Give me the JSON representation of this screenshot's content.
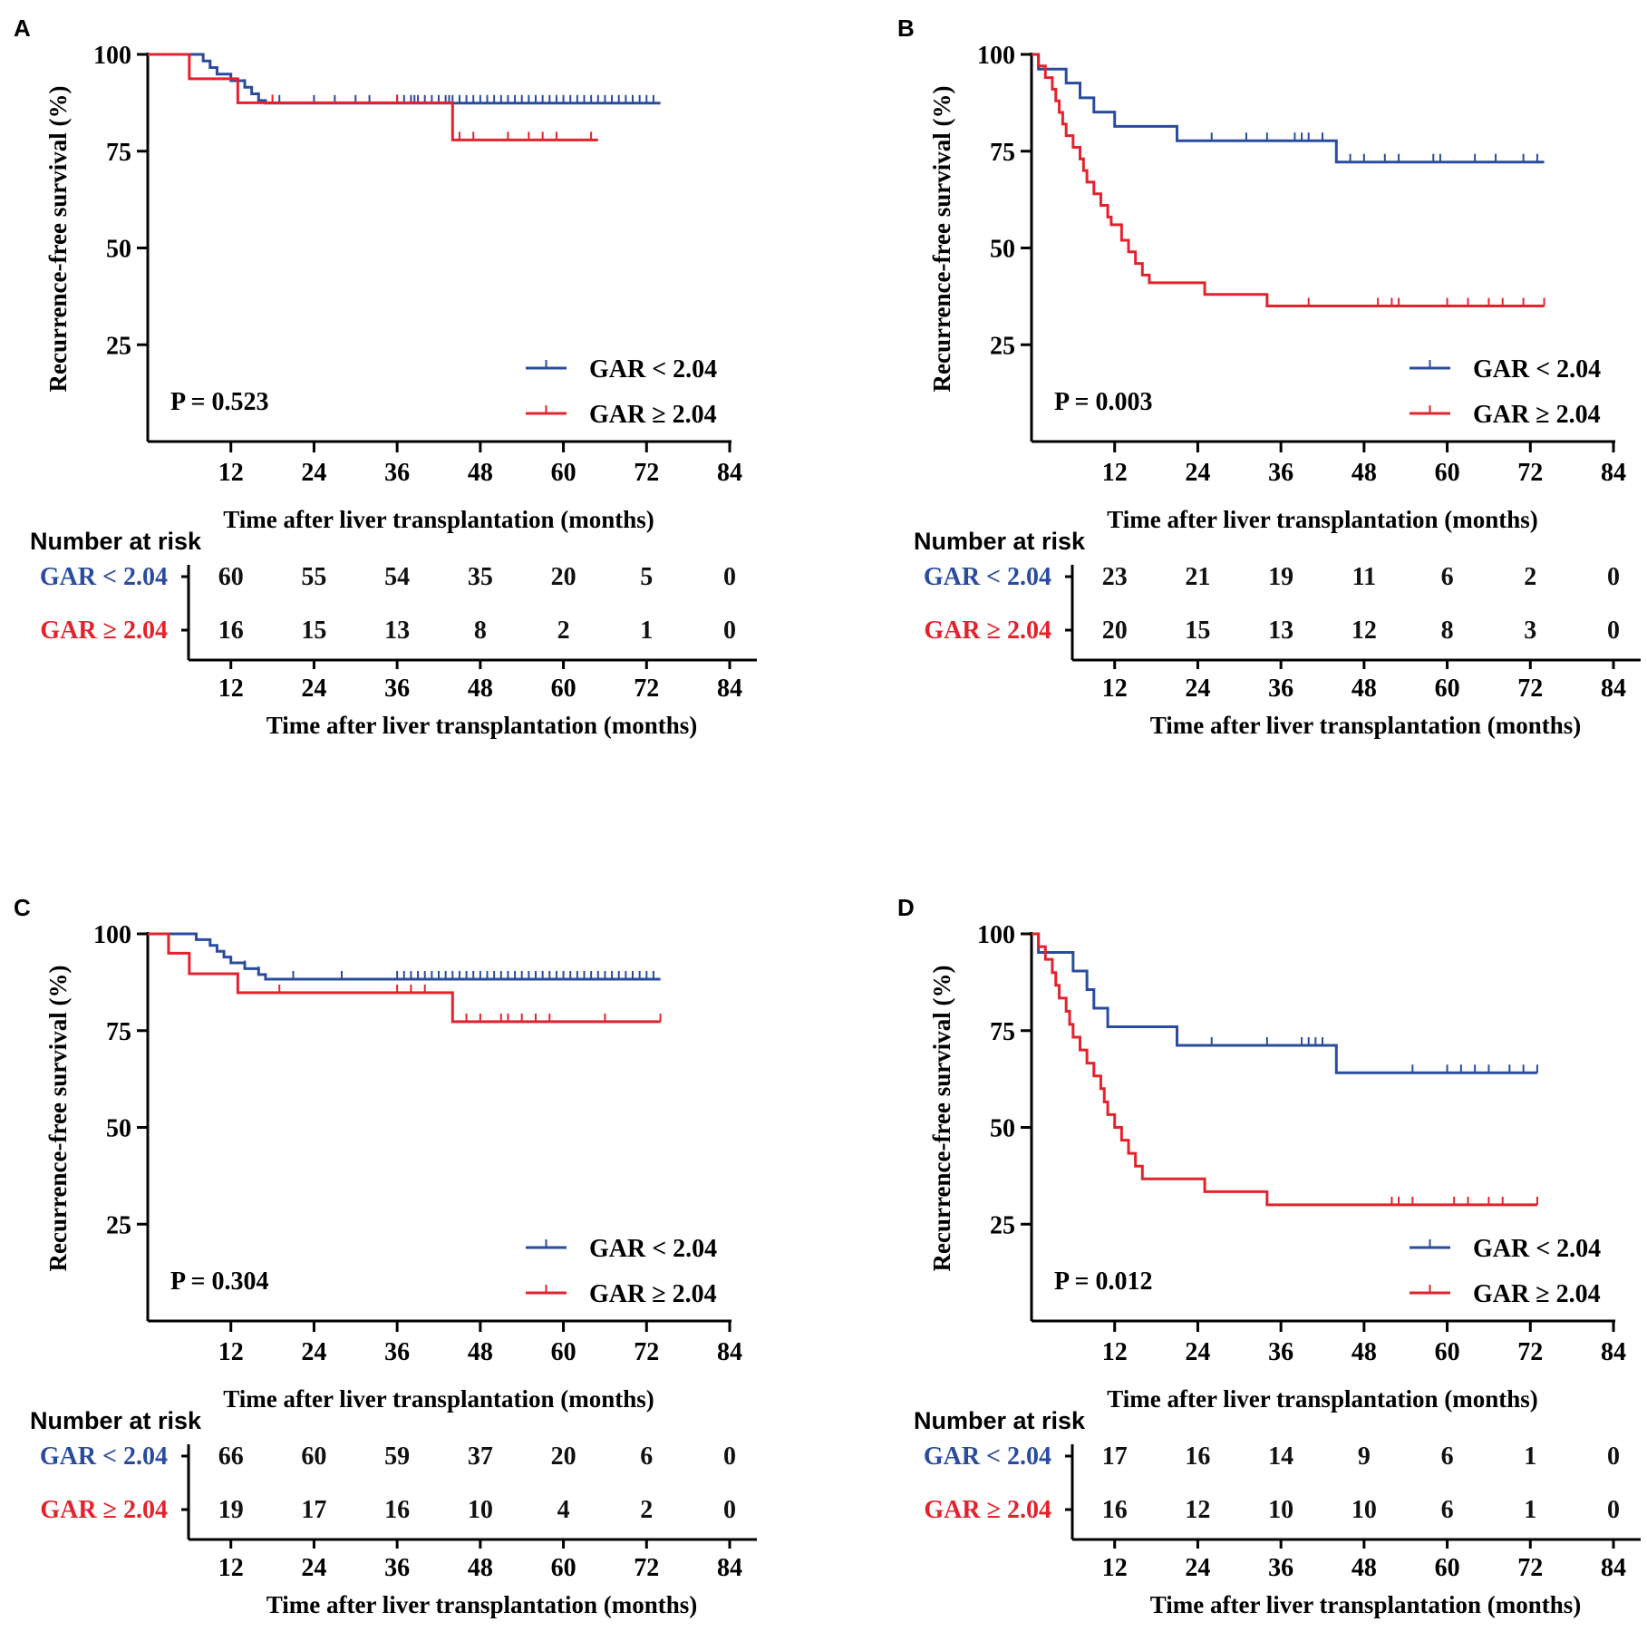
{
  "colors": {
    "low": "#2a4c9e",
    "high": "#e3232c",
    "axis": "#000000"
  },
  "chart_data": [
    {
      "type": "line",
      "panel": "A",
      "ylabel": "Recurrence-free survival (%)",
      "xlabel": "Time after liver transplantation (months)",
      "yticks": [
        100,
        75,
        50,
        25
      ],
      "xticks": [
        12,
        24,
        36,
        48,
        60,
        72,
        84
      ],
      "xlim": [
        0,
        84
      ],
      "ylim": [
        0,
        100
      ],
      "pvalue": "P = 0.523",
      "series": [
        {
          "name": "GAR < 2.04",
          "color": "#2a4c9e",
          "steps": [
            [
              0,
              100
            ],
            [
              8,
              98.3
            ],
            [
              9,
              96.6
            ],
            [
              10,
              94.9
            ],
            [
              12,
              93.2
            ],
            [
              14,
              91.5
            ],
            [
              15,
              89.8
            ],
            [
              16,
              88.1
            ],
            [
              17,
              87.4
            ],
            [
              74,
              87.4
            ]
          ],
          "censors": [
            14,
            16,
            19,
            24,
            27,
            30,
            32,
            36,
            37,
            38,
            38.5,
            39,
            40,
            41,
            42,
            43,
            43.5,
            44,
            45,
            46,
            47,
            48,
            49,
            50,
            51,
            52,
            53,
            54,
            55,
            56,
            57,
            58,
            59,
            60,
            61,
            62,
            63,
            64,
            65,
            66,
            67,
            68,
            69,
            70,
            71,
            72,
            73
          ]
        },
        {
          "name": "GAR ≥ 2.04",
          "color": "#e3232c",
          "steps": [
            [
              0,
              100
            ],
            [
              6,
              93.7
            ],
            [
              13,
              87.5
            ],
            [
              44,
              87.5
            ],
            [
              44,
              77.9
            ],
            [
              65,
              77.9
            ]
          ],
          "censors": [
            18,
            36,
            45,
            47,
            52,
            55,
            57,
            59,
            64
          ]
        }
      ],
      "risk_table": {
        "title": "Number at risk",
        "xlabel": "Time after liver transplantation (months)",
        "xticks": [
          12,
          24,
          36,
          48,
          60,
          72,
          84
        ],
        "rows": [
          {
            "group": "GAR < 2.04",
            "counts": [
              60,
              55,
              54,
              35,
              20,
              5,
              0
            ]
          },
          {
            "group": "GAR ≥ 2.04",
            "counts": [
              16,
              15,
              13,
              8,
              2,
              1,
              0
            ]
          }
        ]
      }
    },
    {
      "type": "line",
      "panel": "B",
      "ylabel": "Recurrence-free survival (%)",
      "xlabel": "Time after liver transplantation (months)",
      "yticks": [
        100,
        75,
        50,
        25
      ],
      "xticks": [
        12,
        24,
        36,
        48,
        60,
        72,
        84
      ],
      "xlim": [
        0,
        84
      ],
      "ylim": [
        0,
        100
      ],
      "pvalue": "P = 0.003",
      "series": [
        {
          "name": "GAR < 2.04",
          "color": "#2a4c9e",
          "steps": [
            [
              0,
              100
            ],
            [
              1,
              96.2
            ],
            [
              5,
              92.6
            ],
            [
              7,
              88.8
            ],
            [
              9,
              85.1
            ],
            [
              12,
              81.4
            ],
            [
              21,
              81.4
            ],
            [
              21,
              77.7
            ],
            [
              44,
              77.7
            ],
            [
              44,
              72.2
            ],
            [
              74,
              72.2
            ]
          ],
          "censors": [
            26,
            31,
            34,
            38,
            39,
            40,
            42,
            46,
            48,
            51,
            53,
            58,
            59,
            64,
            67,
            71,
            73
          ]
        },
        {
          "name": "GAR ≥ 2.04",
          "color": "#e3232c",
          "steps": [
            [
              0,
              100
            ],
            [
              1,
              97
            ],
            [
              2,
              94
            ],
            [
              3,
              91
            ],
            [
              3.5,
              88
            ],
            [
              4,
              85
            ],
            [
              4.5,
              82
            ],
            [
              5,
              79
            ],
            [
              6,
              76
            ],
            [
              7,
              73
            ],
            [
              7.5,
              70
            ],
            [
              8,
              67
            ],
            [
              9,
              64
            ],
            [
              10,
              61
            ],
            [
              11,
              58
            ],
            [
              11.5,
              56
            ],
            [
              13,
              52
            ],
            [
              14,
              49
            ],
            [
              15,
              46
            ],
            [
              16,
              43
            ],
            [
              17,
              41
            ],
            [
              25,
              41
            ],
            [
              25,
              38
            ],
            [
              34,
              38
            ],
            [
              34,
              35
            ],
            [
              74,
              35
            ]
          ],
          "censors": [
            40,
            50,
            52,
            53,
            60,
            63,
            66,
            68,
            71,
            74
          ]
        }
      ],
      "risk_table": {
        "title": "Number at risk",
        "xlabel": "Time after liver transplantation (months)",
        "xticks": [
          12,
          24,
          36,
          48,
          60,
          72,
          84
        ],
        "rows": [
          {
            "group": "GAR < 2.04",
            "counts": [
              23,
              21,
              19,
              11,
              6,
              2,
              0
            ]
          },
          {
            "group": "GAR ≥ 2.04",
            "counts": [
              20,
              15,
              13,
              12,
              8,
              3,
              0
            ]
          }
        ]
      }
    },
    {
      "type": "line",
      "panel": "C",
      "ylabel": "Recurrence-free survival (%)",
      "xlabel": "Time after liver transplantation (months)",
      "yticks": [
        100,
        75,
        50,
        25
      ],
      "xticks": [
        12,
        24,
        36,
        48,
        60,
        72,
        84
      ],
      "xlim": [
        0,
        84
      ],
      "ylim": [
        0,
        100
      ],
      "pvalue": "P = 0.304",
      "series": [
        {
          "name": "GAR < 2.04",
          "color": "#2a4c9e",
          "steps": [
            [
              0,
              100
            ],
            [
              7,
              98.5
            ],
            [
              9,
              97
            ],
            [
              10,
              95.5
            ],
            [
              11,
              94
            ],
            [
              12,
              92.5
            ],
            [
              14,
              91
            ],
            [
              16,
              89.5
            ],
            [
              17,
              88.3
            ],
            [
              74,
              88.3
            ]
          ],
          "censors": [
            14,
            16,
            21,
            28,
            36,
            37,
            38,
            39,
            40,
            41,
            42,
            43,
            44,
            45,
            46,
            47,
            48,
            49,
            50,
            51,
            52,
            53,
            54,
            55,
            56,
            57,
            58,
            59,
            60,
            61,
            62,
            63,
            64,
            65,
            66,
            67,
            68,
            69,
            70,
            71,
            72,
            73
          ]
        },
        {
          "name": "GAR ≥ 2.04",
          "color": "#e3232c",
          "steps": [
            [
              0,
              100
            ],
            [
              3,
              95
            ],
            [
              6,
              89.7
            ],
            [
              13,
              84.8
            ],
            [
              44,
              84.8
            ],
            [
              44,
              77.3
            ],
            [
              74,
              77.3
            ]
          ],
          "censors": [
            19,
            36,
            38,
            40,
            44,
            46,
            48,
            51,
            52,
            54,
            56,
            58,
            66,
            74
          ]
        }
      ],
      "risk_table": {
        "title": "Number at risk",
        "xlabel": "Time after liver transplantation (months)",
        "xticks": [
          12,
          24,
          36,
          48,
          60,
          72,
          84
        ],
        "rows": [
          {
            "group": "GAR < 2.04",
            "counts": [
              66,
              60,
              59,
              37,
              20,
              6,
              0
            ]
          },
          {
            "group": "GAR ≥ 2.04",
            "counts": [
              19,
              17,
              16,
              10,
              4,
              2,
              0
            ]
          }
        ]
      }
    },
    {
      "type": "line",
      "panel": "D",
      "ylabel": "Recurrence-free survival (%)",
      "xlabel": "Time after liver transplantation (months)",
      "yticks": [
        100,
        75,
        50,
        25
      ],
      "xticks": [
        12,
        24,
        36,
        48,
        60,
        72,
        84
      ],
      "xlim": [
        0,
        84
      ],
      "ylim": [
        0,
        100
      ],
      "pvalue": "P = 0.012",
      "series": [
        {
          "name": "GAR < 2.04",
          "color": "#2a4c9e",
          "steps": [
            [
              0,
              100
            ],
            [
              1,
              95.2
            ],
            [
              6,
              90.4
            ],
            [
              8,
              85.6
            ],
            [
              9,
              80.8
            ],
            [
              11,
              76
            ],
            [
              21,
              76
            ],
            [
              21,
              71.2
            ],
            [
              44,
              71.2
            ],
            [
              44,
              64.1
            ],
            [
              73,
              64.1
            ]
          ],
          "censors": [
            26,
            34,
            39,
            40,
            41,
            42,
            55,
            60,
            62,
            64,
            66,
            69,
            71,
            73
          ]
        },
        {
          "name": "GAR ≥ 2.04",
          "color": "#e3232c",
          "steps": [
            [
              0,
              100
            ],
            [
              1,
              96.7
            ],
            [
              2,
              93.4
            ],
            [
              3,
              90
            ],
            [
              3.5,
              86.7
            ],
            [
              4,
              83.4
            ],
            [
              5,
              80
            ],
            [
              5.5,
              76.6
            ],
            [
              6,
              73.3
            ],
            [
              7,
              70
            ],
            [
              8,
              66.6
            ],
            [
              9,
              63.3
            ],
            [
              10,
              60
            ],
            [
              10.5,
              56.6
            ],
            [
              11,
              53.3
            ],
            [
              12,
              50
            ],
            [
              13,
              46.7
            ],
            [
              14,
              43.3
            ],
            [
              15,
              40
            ],
            [
              16,
              36.7
            ],
            [
              25,
              36.7
            ],
            [
              25,
              33.4
            ],
            [
              34,
              33.4
            ],
            [
              34,
              30
            ],
            [
              73,
              30
            ]
          ],
          "censors": [
            52,
            53,
            55,
            61,
            63,
            66,
            68,
            73
          ]
        }
      ],
      "risk_table": {
        "title": "Number at risk",
        "xlabel": "Time after liver transplantation (months)",
        "xticks": [
          12,
          24,
          36,
          48,
          60,
          72,
          84
        ],
        "rows": [
          {
            "group": "GAR < 2.04",
            "counts": [
              17,
              16,
              14,
              9,
              6,
              1,
              0
            ]
          },
          {
            "group": "GAR ≥ 2.04",
            "counts": [
              16,
              12,
              10,
              10,
              6,
              1,
              0
            ]
          }
        ]
      }
    }
  ]
}
